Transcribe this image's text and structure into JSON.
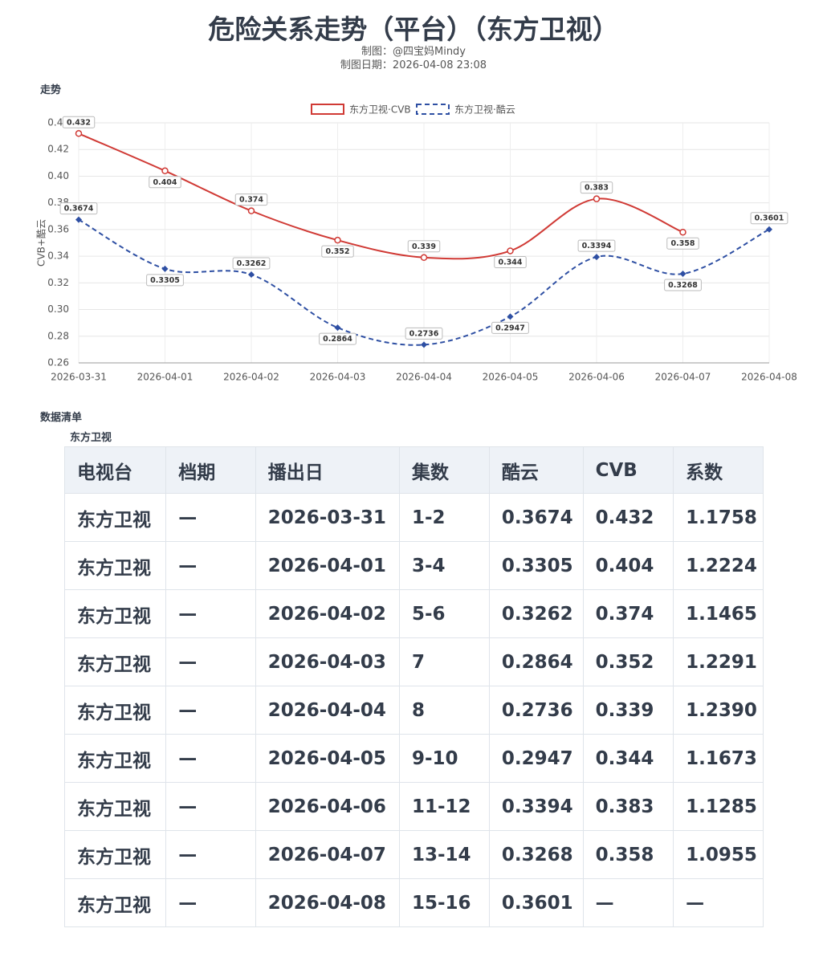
{
  "header": {
    "title": "危险关系走势（平台）（东方卫视）",
    "author": "制图：@四宝妈Mindy",
    "date": "制图日期：2026-04-08 23:08"
  },
  "chart_section": "走势",
  "chart_data": {
    "type": "line",
    "y_label": "CVB+酷云",
    "categories": [
      "2026-03-31",
      "2026-04-01",
      "2026-04-02",
      "2026-04-03",
      "2026-04-04",
      "2026-04-05",
      "2026-04-06",
      "2026-04-07",
      "2026-04-08"
    ],
    "series": [
      {
        "name": "东方卫视·CVB",
        "color": "#d03a35",
        "dash": false,
        "marker": "circle",
        "values": [
          0.432,
          0.404,
          0.374,
          0.352,
          0.339,
          0.344,
          0.383,
          0.358,
          null
        ]
      },
      {
        "name": "东方卫视·酷云",
        "color": "#2e4fa3",
        "dash": true,
        "marker": "diamond",
        "values": [
          0.3674,
          0.3305,
          0.3262,
          0.2864,
          0.2736,
          0.2947,
          0.3394,
          0.3268,
          0.3601
        ]
      }
    ],
    "ylim": [
      0.26,
      0.44
    ],
    "yticks": [
      0.26,
      0.28,
      {
        "value": 0.3,
        "label": "0.30"
      },
      0.32,
      0.34,
      0.36,
      0.38,
      {
        "value": 0.4,
        "label": "0.40"
      },
      0.42,
      0.44
    ],
    "grid": true,
    "legend": "top"
  },
  "table_section": "数据清单",
  "table": {
    "caption": "东方卫视",
    "headers": [
      "电视台",
      "档期",
      "播出日",
      "集数",
      "酷云",
      "CVB",
      "系数"
    ],
    "rows": [
      [
        "东方卫视",
        "—",
        "2026-03-31",
        "1-2",
        "0.3674",
        "0.432",
        "1.1758"
      ],
      [
        "东方卫视",
        "—",
        "2026-04-01",
        "3-4",
        "0.3305",
        "0.404",
        "1.2224"
      ],
      [
        "东方卫视",
        "—",
        "2026-04-02",
        "5-6",
        "0.3262",
        "0.374",
        "1.1465"
      ],
      [
        "东方卫视",
        "—",
        "2026-04-03",
        "7",
        "0.2864",
        "0.352",
        "1.2291"
      ],
      [
        "东方卫视",
        "—",
        "2026-04-04",
        "8",
        "0.2736",
        "0.339",
        "1.2390"
      ],
      [
        "东方卫视",
        "—",
        "2026-04-05",
        "9-10",
        "0.2947",
        "0.344",
        "1.1673"
      ],
      [
        "东方卫视",
        "—",
        "2026-04-06",
        "11-12",
        "0.3394",
        "0.383",
        "1.1285"
      ],
      [
        "东方卫视",
        "—",
        "2026-04-07",
        "13-14",
        "0.3268",
        "0.358",
        "1.0955"
      ],
      [
        "东方卫视",
        "—",
        "2026-04-08",
        "15-16",
        "0.3601",
        "—",
        "—"
      ]
    ]
  }
}
